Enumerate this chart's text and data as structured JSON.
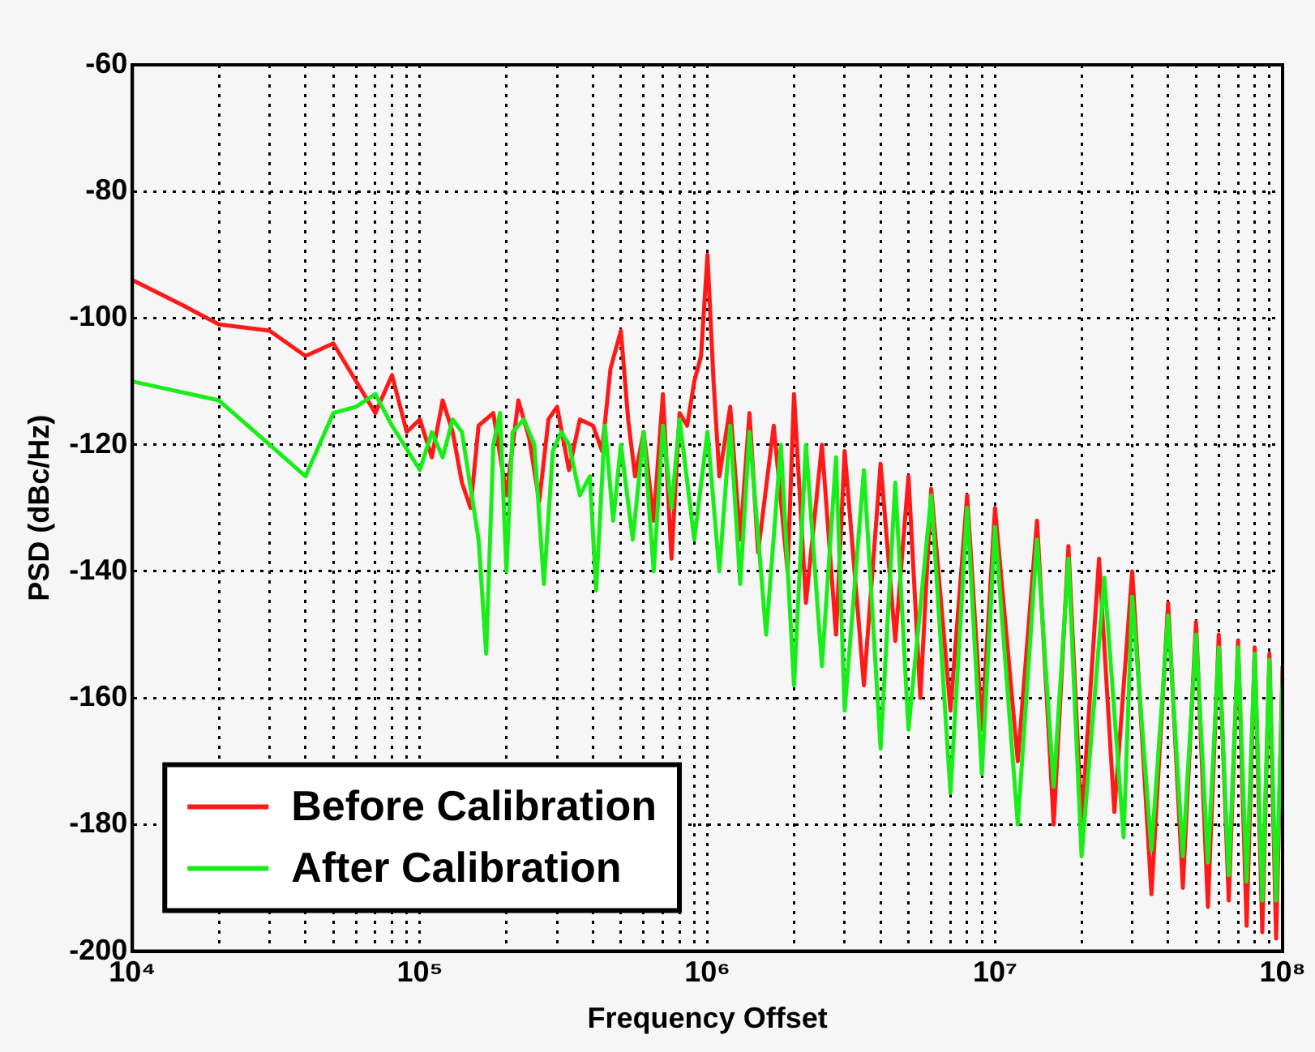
{
  "chart_data": {
    "type": "line",
    "xlabel": "Frequency Offset",
    "ylabel": "PSD (dBc/Hz)",
    "log": "x",
    "grid": true,
    "legend": "bottom left",
    "marker": "none",
    "line_style": "solid",
    "xlim": [
      10000,
      100000000
    ],
    "xticks": [
      {
        "value": 10000,
        "label": "10⁴"
      },
      {
        "value": 20000,
        "label": null
      },
      {
        "value": 30000,
        "label": null
      },
      {
        "value": 40000,
        "label": null
      },
      {
        "value": 50000,
        "label": null
      },
      {
        "value": 60000,
        "label": null
      },
      {
        "value": 70000,
        "label": null
      },
      {
        "value": 80000,
        "label": null
      },
      {
        "value": 90000,
        "label": null
      },
      {
        "value": 100000,
        "label": "10⁵"
      },
      {
        "value": 200000,
        "label": null
      },
      {
        "value": 300000,
        "label": null
      },
      {
        "value": 400000,
        "label": null
      },
      {
        "value": 500000,
        "label": null
      },
      {
        "value": 600000,
        "label": null
      },
      {
        "value": 700000,
        "label": null
      },
      {
        "value": 800000,
        "label": null
      },
      {
        "value": 900000,
        "label": null
      },
      {
        "value": 1000000,
        "label": "10⁶"
      },
      {
        "value": 2000000,
        "label": null
      },
      {
        "value": 3000000,
        "label": null
      },
      {
        "value": 4000000,
        "label": null
      },
      {
        "value": 5000000,
        "label": null
      },
      {
        "value": 6000000,
        "label": null
      },
      {
        "value": 7000000,
        "label": null
      },
      {
        "value": 8000000,
        "label": null
      },
      {
        "value": 9000000,
        "label": null
      },
      {
        "value": 10000000,
        "label": "10⁷"
      },
      {
        "value": 20000000,
        "label": null
      },
      {
        "value": 30000000,
        "label": null
      },
      {
        "value": 40000000,
        "label": null
      },
      {
        "value": 50000000,
        "label": null
      },
      {
        "value": 60000000,
        "label": null
      },
      {
        "value": 70000000,
        "label": null
      },
      {
        "value": 80000000,
        "label": null
      },
      {
        "value": 90000000,
        "label": null
      },
      {
        "value": 100000000,
        "label": "10⁸"
      }
    ],
    "ylim": [
      -200,
      -60
    ],
    "yticks": [
      -200,
      -180,
      -160,
      -140,
      -120,
      -100,
      -80,
      -60
    ],
    "series": [
      {
        "name": "Before Calibration",
        "color": "#ff1a1a",
        "x": [
          10000,
          15000,
          20000,
          30000,
          40000,
          50000,
          60000,
          70000,
          80000,
          90000,
          100000,
          110000,
          120000,
          130000,
          140000,
          150000,
          160000,
          180000,
          200000,
          220000,
          240000,
          260000,
          280000,
          300000,
          330000,
          360000,
          400000,
          430000,
          460000,
          500000,
          530000,
          560000,
          600000,
          650000,
          700000,
          750000,
          800000,
          850000,
          900000,
          950000,
          1000000,
          1050000,
          1100000,
          1200000,
          1300000,
          1400000,
          1500000,
          1700000,
          1900000,
          2000000,
          2200000,
          2500000,
          2800000,
          3000000,
          3500000,
          4000000,
          4500000,
          5000000,
          5500000,
          6000000,
          7000000,
          8000000,
          9000000,
          10000000,
          12000000,
          14000000,
          16000000,
          18000000,
          20000000,
          23000000,
          26000000,
          30000000,
          35000000,
          40000000,
          45000000,
          50000000,
          55000000,
          60000000,
          65000000,
          70000000,
          75000000,
          80000000,
          85000000,
          90000000,
          95000000,
          100000000
        ],
        "values": [
          -94,
          -98,
          -101,
          -102,
          -106,
          -104,
          -110,
          -115,
          -109,
          -118,
          -116,
          -122,
          -113,
          -118,
          -126,
          -130,
          -117,
          -115,
          -128,
          -113,
          -119,
          -129,
          -116,
          -114,
          -124,
          -116,
          -117,
          -121,
          -108,
          -102,
          -116,
          -125,
          -118,
          -132,
          -112,
          -138,
          -115,
          -117,
          -110,
          -106,
          -90,
          -110,
          -125,
          -114,
          -135,
          -115,
          -137,
          -117,
          -140,
          -112,
          -145,
          -120,
          -150,
          -121,
          -158,
          -123,
          -151,
          -125,
          -160,
          -127,
          -162,
          -128,
          -165,
          -130,
          -170,
          -132,
          -180,
          -136,
          -180,
          -138,
          -178,
          -140,
          -191,
          -145,
          -190,
          -148,
          -193,
          -150,
          -192,
          -151,
          -196,
          -152,
          -197,
          -153,
          -198,
          -155
        ]
      },
      {
        "name": "After Calibration",
        "color": "#1aee1a",
        "x": [
          10000,
          20000,
          30000,
          40000,
          50000,
          60000,
          70000,
          80000,
          100000,
          110000,
          120000,
          130000,
          140000,
          160000,
          170000,
          180000,
          190000,
          200000,
          210000,
          230000,
          250000,
          270000,
          290000,
          310000,
          330000,
          360000,
          390000,
          410000,
          440000,
          470000,
          500000,
          550000,
          600000,
          650000,
          700000,
          750000,
          800000,
          900000,
          1000000,
          1100000,
          1200000,
          1300000,
          1400000,
          1600000,
          1800000,
          2000000,
          2200000,
          2500000,
          2800000,
          3000000,
          3500000,
          4000000,
          4500000,
          5000000,
          6000000,
          7000000,
          8000000,
          9000000,
          10000000,
          12000000,
          14000000,
          16000000,
          18000000,
          20000000,
          24000000,
          28000000,
          30000000,
          35000000,
          40000000,
          45000000,
          50000000,
          55000000,
          60000000,
          65000000,
          70000000,
          75000000,
          80000000,
          85000000,
          90000000,
          95000000,
          100000000
        ],
        "values": [
          -110,
          -113,
          -120,
          -125,
          -115,
          -114,
          -112,
          -117,
          -124,
          -118,
          -122,
          -116,
          -118,
          -135,
          -153,
          -120,
          -115,
          -140,
          -118,
          -116,
          -120,
          -142,
          -121,
          -118,
          -120,
          -128,
          -125,
          -143,
          -117,
          -132,
          -120,
          -135,
          -118,
          -140,
          -117,
          -130,
          -116,
          -135,
          -118,
          -140,
          -117,
          -142,
          -118,
          -150,
          -120,
          -158,
          -120,
          -155,
          -122,
          -162,
          -124,
          -168,
          -126,
          -165,
          -128,
          -175,
          -130,
          -172,
          -133,
          -180,
          -135,
          -174,
          -138,
          -185,
          -141,
          -182,
          -144,
          -184,
          -147,
          -185,
          -150,
          -186,
          -152,
          -188,
          -152,
          -189,
          -153,
          -192,
          -154,
          -192,
          -157
        ]
      }
    ]
  }
}
